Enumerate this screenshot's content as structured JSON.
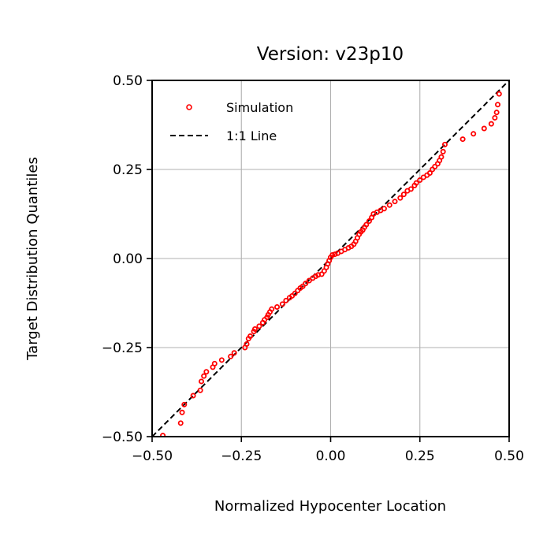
{
  "chart_data": {
    "type": "scatter",
    "title": "Version: v23p10",
    "xlabel": "Normalized Hypocenter Location",
    "ylabel": "Target Distribution Quantiles",
    "xlim": [
      -0.5,
      0.5
    ],
    "ylim": [
      -0.5,
      0.5
    ],
    "x_ticks": [
      "−0.50",
      "−0.25",
      "0.00",
      "0.25",
      "0.50"
    ],
    "y_ticks": [
      "−0.50",
      "−0.25",
      "0.00",
      "0.25",
      "0.50"
    ],
    "x_tick_values": [
      -0.5,
      -0.25,
      0.0,
      0.25,
      0.5
    ],
    "y_tick_values": [
      -0.5,
      -0.25,
      0.0,
      0.25,
      0.5
    ],
    "grid": true,
    "legend_position": "top-left",
    "series": [
      {
        "name": "Simulation",
        "kind": "scatter",
        "color": "#ff0000",
        "points": [
          [
            -0.47,
            -0.497
          ],
          [
            -0.42,
            -0.462
          ],
          [
            -0.416,
            -0.432
          ],
          [
            -0.41,
            -0.41
          ],
          [
            -0.385,
            -0.385
          ],
          [
            -0.365,
            -0.37
          ],
          [
            -0.362,
            -0.345
          ],
          [
            -0.355,
            -0.33
          ],
          [
            -0.348,
            -0.318
          ],
          [
            -0.33,
            -0.305
          ],
          [
            -0.325,
            -0.295
          ],
          [
            -0.305,
            -0.285
          ],
          [
            -0.28,
            -0.275
          ],
          [
            -0.27,
            -0.265
          ],
          [
            -0.24,
            -0.25
          ],
          [
            -0.235,
            -0.24
          ],
          [
            -0.23,
            -0.225
          ],
          [
            -0.225,
            -0.218
          ],
          [
            -0.215,
            -0.205
          ],
          [
            -0.212,
            -0.198
          ],
          [
            -0.2,
            -0.19
          ],
          [
            -0.19,
            -0.18
          ],
          [
            -0.185,
            -0.172
          ],
          [
            -0.178,
            -0.165
          ],
          [
            -0.175,
            -0.158
          ],
          [
            -0.17,
            -0.15
          ],
          [
            -0.165,
            -0.142
          ],
          [
            -0.15,
            -0.136
          ],
          [
            -0.135,
            -0.128
          ],
          [
            -0.125,
            -0.118
          ],
          [
            -0.115,
            -0.11
          ],
          [
            -0.108,
            -0.105
          ],
          [
            -0.1,
            -0.098
          ],
          [
            -0.092,
            -0.09
          ],
          [
            -0.085,
            -0.083
          ],
          [
            -0.078,
            -0.078
          ],
          [
            -0.07,
            -0.07
          ],
          [
            -0.06,
            -0.062
          ],
          [
            -0.05,
            -0.055
          ],
          [
            -0.042,
            -0.05
          ],
          [
            -0.035,
            -0.046
          ],
          [
            -0.025,
            -0.044
          ],
          [
            -0.018,
            -0.035
          ],
          [
            -0.012,
            -0.025
          ],
          [
            -0.008,
            -0.015
          ],
          [
            -0.004,
            -0.006
          ],
          [
            0.0,
            0.003
          ],
          [
            0.005,
            0.01
          ],
          [
            0.012,
            0.012
          ],
          [
            0.02,
            0.015
          ],
          [
            0.03,
            0.02
          ],
          [
            0.04,
            0.025
          ],
          [
            0.05,
            0.03
          ],
          [
            0.058,
            0.034
          ],
          [
            0.065,
            0.04
          ],
          [
            0.07,
            0.048
          ],
          [
            0.075,
            0.058
          ],
          [
            0.08,
            0.068
          ],
          [
            0.085,
            0.075
          ],
          [
            0.09,
            0.08
          ],
          [
            0.095,
            0.088
          ],
          [
            0.1,
            0.095
          ],
          [
            0.108,
            0.105
          ],
          [
            0.115,
            0.115
          ],
          [
            0.12,
            0.125
          ],
          [
            0.13,
            0.13
          ],
          [
            0.14,
            0.135
          ],
          [
            0.15,
            0.14
          ],
          [
            0.165,
            0.15
          ],
          [
            0.18,
            0.16
          ],
          [
            0.195,
            0.17
          ],
          [
            0.205,
            0.18
          ],
          [
            0.215,
            0.19
          ],
          [
            0.225,
            0.195
          ],
          [
            0.235,
            0.205
          ],
          [
            0.24,
            0.212
          ],
          [
            0.25,
            0.22
          ],
          [
            0.26,
            0.228
          ],
          [
            0.27,
            0.234
          ],
          [
            0.278,
            0.24
          ],
          [
            0.285,
            0.25
          ],
          [
            0.292,
            0.258
          ],
          [
            0.3,
            0.266
          ],
          [
            0.305,
            0.275
          ],
          [
            0.31,
            0.285
          ],
          [
            0.315,
            0.3
          ],
          [
            0.32,
            0.32
          ],
          [
            0.37,
            0.335
          ],
          [
            0.4,
            0.35
          ],
          [
            0.43,
            0.365
          ],
          [
            0.45,
            0.378
          ],
          [
            0.46,
            0.395
          ],
          [
            0.465,
            0.41
          ],
          [
            0.468,
            0.432
          ],
          [
            0.472,
            0.462
          ]
        ]
      },
      {
        "name": "1:1 Line",
        "kind": "line",
        "style": "dashed",
        "color": "#000000",
        "points": [
          [
            -0.5,
            -0.5
          ],
          [
            0.5,
            0.5
          ]
        ]
      }
    ]
  }
}
